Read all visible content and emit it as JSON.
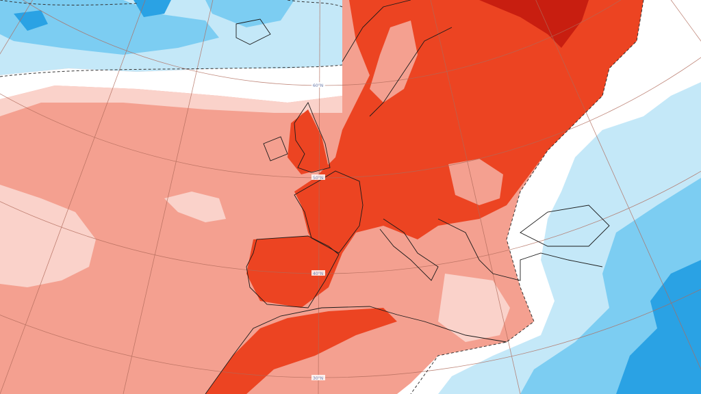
{
  "map": {
    "type": "temperature-anomaly",
    "latitude_labels": [
      "60°N",
      "50°N",
      "40°N",
      "30°N"
    ],
    "colors": {
      "very_warm": "#c81e10",
      "warm": "#ec4422",
      "mild_warm": "#f4a090",
      "slight_warm": "#fad2ca",
      "neutral": "#ffffff",
      "slight_cold": "#c4e8f8",
      "cold": "#7ccdf2",
      "very_cold": "#2aa2e4",
      "coastline": "#1a1a1a",
      "graticule": "#b06a5a"
    }
  }
}
